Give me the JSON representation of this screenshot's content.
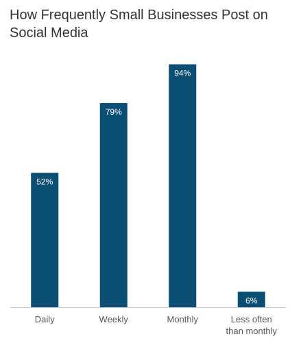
{
  "chart_data": {
    "type": "bar",
    "title": "How Frequently Small Businesses Post on Social Media",
    "categories": [
      "Daily",
      "Weekly",
      "Monthly",
      "Less often than monthly"
    ],
    "category_lines": [
      [
        "Daily"
      ],
      [
        "Weekly"
      ],
      [
        "Monthly"
      ],
      [
        "Less often",
        "than monthly"
      ]
    ],
    "values": [
      52,
      79,
      94,
      6
    ],
    "data_labels": [
      "52%",
      "79%",
      "94%",
      "6%"
    ],
    "ylim": [
      0,
      100
    ],
    "bar_color": "#0b4f75",
    "axis_color": "#cccccc",
    "grid": false,
    "xlabel": "",
    "ylabel": ""
  }
}
